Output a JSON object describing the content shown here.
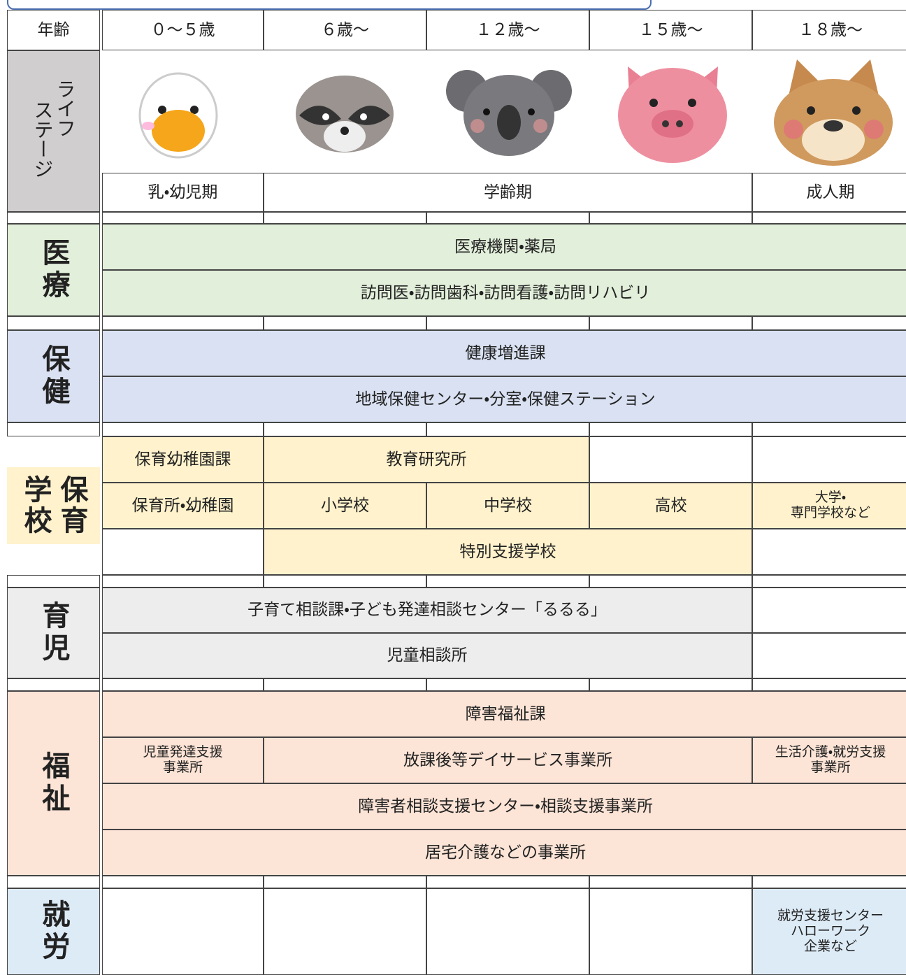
{
  "header": {
    "age_label": "年齢",
    "ages": [
      "０～５歳",
      "６歳～",
      "１２歳～",
      "１５歳～",
      "１８歳～"
    ]
  },
  "life_stage": {
    "label": [
      "ライフ",
      "ステージ"
    ],
    "stages": [
      "乳・幼児期",
      "学齢期",
      "成人期"
    ]
  },
  "sections": [
    {
      "label": "医療",
      "cells": [
        "医療機関・薬局",
        "訪問医・訪問歯科・訪問看護・訪問リハビリ"
      ]
    },
    {
      "label": "保健",
      "cells": [
        "健康増進課",
        "地域保健センター・分室・保健ステーション"
      ]
    },
    {
      "label": "保育学校",
      "cells": [
        "保育幼稚園課",
        "教育研究所",
        "保育所・幼稚園",
        "小学校",
        "中学校",
        "高校",
        "大学・\n専門学校など",
        "特別支援学校"
      ]
    },
    {
      "label": "育児",
      "cells": [
        "子育て相談課・子ども発達相談センター「るるる」",
        "児童相談所"
      ]
    },
    {
      "label": "福祉",
      "cells": [
        "障害福祉課",
        "児童発達支援\n事業所",
        "放課後等デイサービス事業所",
        "生活介護・就労支援\n事業所",
        "障害者相談支援センター・相談支援事業所",
        "居宅介護などの事業所"
      ]
    },
    {
      "label": "就労",
      "cells": [
        "就労支援センター\nハローワーク\n企業など"
      ]
    }
  ]
}
